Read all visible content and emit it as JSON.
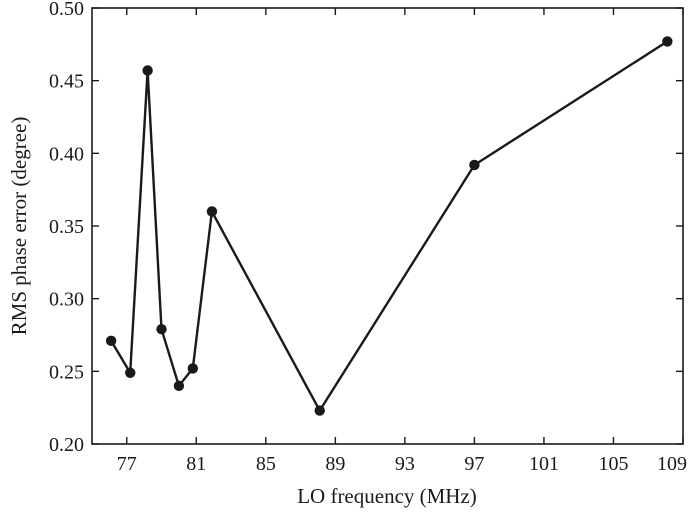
{
  "chart_data": {
    "type": "line",
    "title": "",
    "xlabel": "LO frequency (MHz)",
    "ylabel": "RMS phase error (degree)",
    "xlim": [
      75,
      109
    ],
    "ylim": [
      0.2,
      0.5
    ],
    "x_ticks": [
      77,
      81,
      85,
      89,
      93,
      97,
      101,
      105,
      109
    ],
    "x_tick_labels": [
      "77",
      "81",
      "85",
      "89",
      "93",
      "97",
      "101",
      "105",
      "109"
    ],
    "y_ticks": [
      0.2,
      0.25,
      0.3,
      0.35,
      0.4,
      0.45,
      0.5
    ],
    "y_tick_labels": [
      "0.20",
      "0.25",
      "0.30",
      "0.35",
      "0.40",
      "0.45",
      "0.50"
    ],
    "grid": false,
    "series": [
      {
        "x": [
          76.1,
          77.2,
          78.2,
          79.0,
          80.0,
          80.8,
          81.9,
          88.1,
          97.0,
          108.1
        ],
        "y": [
          0.271,
          0.249,
          0.457,
          0.279,
          0.24,
          0.252,
          0.36,
          0.223,
          0.392,
          0.477
        ]
      }
    ],
    "line_color": "#1a1a1a",
    "marker": "filled-circle"
  }
}
